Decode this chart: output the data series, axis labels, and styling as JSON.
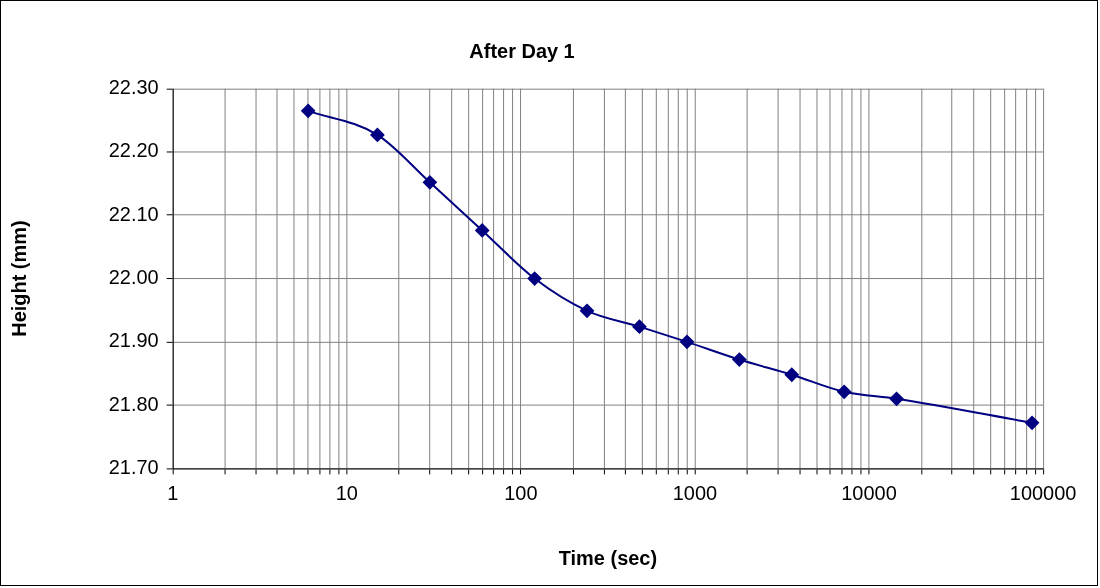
{
  "chart_data": {
    "type": "line",
    "title": "After Day 1",
    "xlabel": "Time (sec)",
    "ylabel": "Height (mm)",
    "x": [
      6,
      15,
      30,
      60,
      120,
      240,
      480,
      900,
      1800,
      3600,
      7200,
      14400,
      86400
    ],
    "series": [
      {
        "color": "#000080",
        "values": [
          22.265,
          22.227,
          22.152,
          22.076,
          22.0,
          21.949,
          21.924,
          21.9,
          21.872,
          21.848,
          21.821,
          21.81,
          21.772
        ]
      }
    ],
    "log": "x",
    "xlim": [
      1,
      100000
    ],
    "xticks": [
      1,
      {
        "value": 2,
        "label": null
      },
      {
        "value": 3,
        "label": null
      },
      {
        "value": 4,
        "label": null
      },
      {
        "value": 5,
        "label": null
      },
      {
        "value": 6,
        "label": null
      },
      {
        "value": 7,
        "label": null
      },
      {
        "value": 8,
        "label": null
      },
      {
        "value": 9,
        "label": null
      },
      10,
      {
        "value": 20,
        "label": null
      },
      {
        "value": 30,
        "label": null
      },
      {
        "value": 40,
        "label": null
      },
      {
        "value": 50,
        "label": null
      },
      {
        "value": 60,
        "label": null
      },
      {
        "value": 70,
        "label": null
      },
      {
        "value": 80,
        "label": null
      },
      {
        "value": 90,
        "label": null
      },
      100,
      {
        "value": 200,
        "label": null
      },
      {
        "value": 300,
        "label": null
      },
      {
        "value": 400,
        "label": null
      },
      {
        "value": 500,
        "label": null
      },
      {
        "value": 600,
        "label": null
      },
      {
        "value": 700,
        "label": null
      },
      {
        "value": 800,
        "label": null
      },
      {
        "value": 900,
        "label": null
      },
      1000,
      {
        "value": 2000,
        "label": null
      },
      {
        "value": 3000,
        "label": null
      },
      {
        "value": 4000,
        "label": null
      },
      {
        "value": 5000,
        "label": null
      },
      {
        "value": 6000,
        "label": null
      },
      {
        "value": 7000,
        "label": null
      },
      {
        "value": 8000,
        "label": null
      },
      {
        "value": 9000,
        "label": null
      },
      10000,
      {
        "value": 20000,
        "label": null
      },
      {
        "value": 30000,
        "label": null
      },
      {
        "value": 40000,
        "label": null
      },
      {
        "value": 50000,
        "label": null
      },
      {
        "value": 60000,
        "label": null
      },
      {
        "value": 70000,
        "label": null
      },
      {
        "value": 80000,
        "label": null
      },
      {
        "value": 90000,
        "label": null
      },
      100000
    ],
    "ylim": [
      21.7,
      22.3
    ],
    "yticks": [
      {
        "value": 21.7,
        "label": "21.70"
      },
      {
        "value": 21.8,
        "label": "21.80"
      },
      {
        "value": 21.9,
        "label": "21.90"
      },
      {
        "value": 22.0,
        "label": "22.00"
      },
      {
        "value": 22.1,
        "label": "22.10"
      },
      {
        "value": 22.2,
        "label": "22.20"
      },
      {
        "value": 22.3,
        "label": "22.30"
      }
    ],
    "grid": true,
    "marker": "diamond",
    "line_style": "solid"
  }
}
